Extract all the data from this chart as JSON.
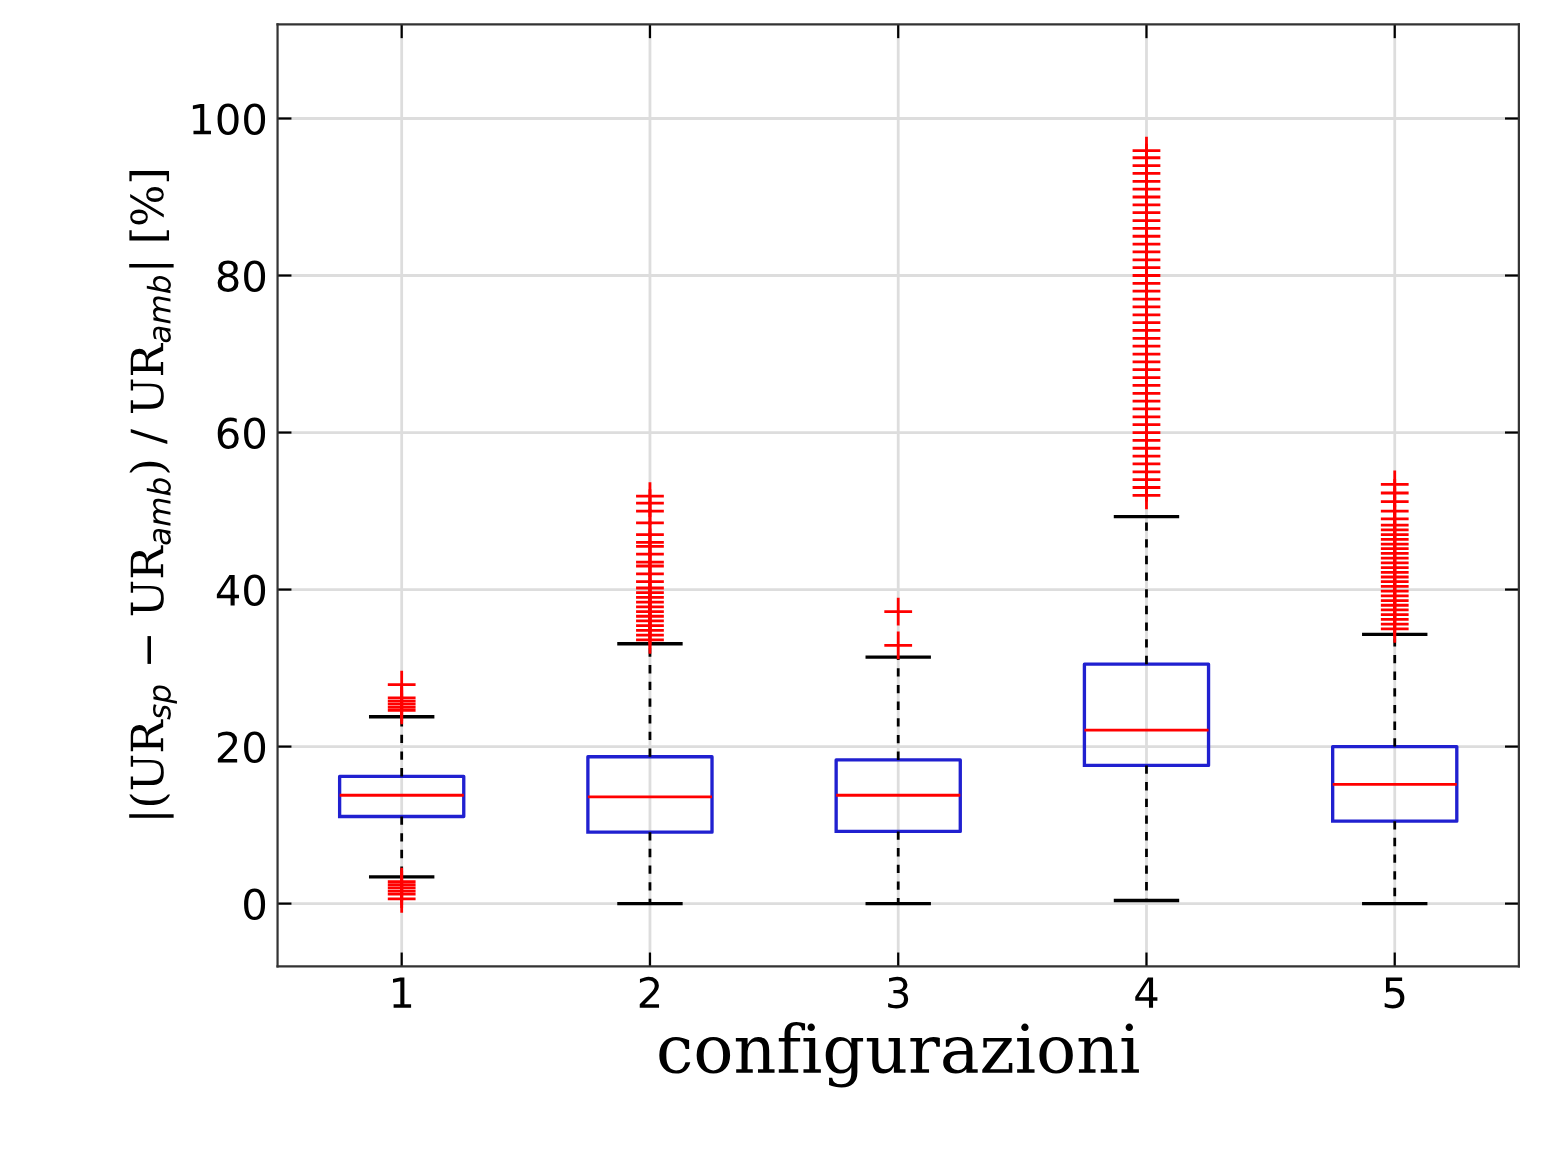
{
  "chart_data": {
    "type": "box",
    "xlabel": "configurazioni",
    "ylabel": "|(UR$_{sp}$ − UR$_{amb}$) / UR$_{amb}$| [%]",
    "categories": [
      "1",
      "2",
      "3",
      "4",
      "5"
    ],
    "ylim": [
      -8,
      112
    ],
    "yticks": [
      0,
      20,
      40,
      60,
      80,
      100
    ],
    "grid": true,
    "series": [
      {
        "color": "#2020d0",
        "boxes": [
          {
            "low": 3.4,
            "q1": 11.1,
            "median": 13.8,
            "q3": 16.2,
            "high": 23.8,
            "outliers": [
              0.6,
              1.2,
              1.6,
              2.0,
              2.4,
              2.8,
              24.6,
              25.0,
              25.4,
              25.8,
              26.2,
              27.9
            ]
          },
          {
            "low": 0,
            "q1": 9.1,
            "median": 13.6,
            "q3": 18.7,
            "high": 33.1,
            "outliers": [
              33.6,
              34.2,
              34.8,
              35.4,
              36.0,
              36.6,
              37.2,
              37.8,
              38.4,
              39.0,
              39.6,
              40.2,
              41.0,
              42.0,
              43.0,
              43.5,
              44.5,
              45.5,
              46.0,
              47.0,
              48.5,
              50.0,
              51.0,
              51.9
            ]
          },
          {
            "low": 0,
            "q1": 9.2,
            "median": 13.8,
            "q3": 18.3,
            "high": 31.4,
            "outliers": [
              32.9,
              37.2
            ]
          },
          {
            "low": 0.4,
            "q1": 17.6,
            "median": 22.1,
            "q3": 30.5,
            "high": 49.3,
            "outliers": [
              52.0,
              53.0,
              54.0,
              55.0,
              56.0,
              57.0,
              58.0,
              59.0,
              60.0,
              61.0,
              62.0,
              63.0,
              64.0,
              65.0,
              66.0,
              67.0,
              68.0,
              69.0,
              70.0,
              71.0,
              72.0,
              73.0,
              74.0,
              75.0,
              76.0,
              77.0,
              78.0,
              79.0,
              80.0,
              81.0,
              82.0,
              83.0,
              84.0,
              85.0,
              86.0,
              87.0,
              88.0,
              89.0,
              90.0,
              91.0,
              92.0,
              93.0,
              94.0,
              95.0,
              95.9
            ]
          },
          {
            "low": 0,
            "q1": 10.5,
            "median": 15.2,
            "q3": 20.0,
            "high": 34.3,
            "outliers": [
              35.0,
              35.6,
              36.2,
              36.8,
              37.4,
              38.0,
              38.6,
              39.2,
              39.8,
              40.4,
              41.0,
              41.6,
              42.2,
              42.8,
              43.4,
              44.0,
              44.6,
              45.2,
              45.8,
              46.4,
              47.0,
              47.6,
              48.2,
              49.0,
              50.0,
              51.2,
              52.3,
              53.4
            ]
          }
        ]
      }
    ]
  }
}
